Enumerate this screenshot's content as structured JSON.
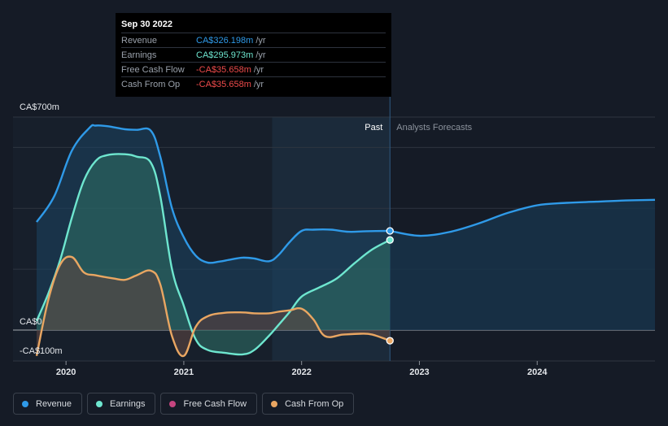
{
  "tooltip": {
    "date": "Sep 30 2022",
    "rows": [
      {
        "label": "Revenue",
        "value": "CA$326.198m",
        "unit": "/yr",
        "color": "#2f9ae8"
      },
      {
        "label": "Earnings",
        "value": "CA$295.973m",
        "unit": "/yr",
        "color": "#6ee6cf"
      },
      {
        "label": "Free Cash Flow",
        "value": "-CA$35.658m",
        "unit": "/yr",
        "color": "#ee4b4b"
      },
      {
        "label": "Cash From Op",
        "value": "-CA$35.658m",
        "unit": "/yr",
        "color": "#ee4b4b"
      }
    ]
  },
  "legend": [
    {
      "label": "Revenue",
      "color": "#2f9ae8"
    },
    {
      "label": "Earnings",
      "color": "#6ee6cf"
    },
    {
      "label": "Free Cash Flow",
      "color": "#c5457f"
    },
    {
      "label": "Cash From Op",
      "color": "#e9a662"
    }
  ],
  "chart_data": {
    "type": "area",
    "x_unit": "year",
    "xlim": [
      2019.55,
      2025.0
    ],
    "ylim": [
      -100,
      700
    ],
    "y_tick_labels": [
      {
        "value": 700,
        "label": "CA$700m"
      },
      {
        "value": 0,
        "label": "CA$0"
      },
      {
        "value": -100,
        "label": "-CA$100m"
      }
    ],
    "gridlines": [
      700,
      600,
      400,
      200,
      0
    ],
    "x_ticks": [
      {
        "value": 2020,
        "label": "2020"
      },
      {
        "value": 2021,
        "label": "2021"
      },
      {
        "value": 2022,
        "label": "2022"
      },
      {
        "value": 2023,
        "label": "2023"
      },
      {
        "value": 2024,
        "label": "2024"
      }
    ],
    "past_label": "Past",
    "forecast_label": "Analysts Forecasts",
    "divider_x": 2022.75,
    "highlight_start_x": 2021.75,
    "series": [
      {
        "name": "Revenue",
        "color": "#2f9ae8",
        "fill": "#1c4463",
        "x": [
          2019.75,
          2019.9,
          2020.05,
          2020.2,
          2020.25,
          2020.35,
          2020.5,
          2020.6,
          2020.72,
          2020.8,
          2020.9,
          2021.0,
          2021.1,
          2021.2,
          2021.3,
          2021.4,
          2021.5,
          2021.6,
          2021.72,
          2021.8,
          2021.9,
          2022.0,
          2022.1,
          2022.25,
          2022.4,
          2022.55,
          2022.75
        ],
        "y": [
          355,
          440,
          590,
          665,
          672,
          670,
          660,
          658,
          655,
          570,
          400,
          305,
          245,
          222,
          225,
          232,
          238,
          235,
          226,
          245,
          290,
          326,
          330,
          330,
          323,
          325,
          326
        ],
        "forecast_x": [
          2022.75,
          2023.0,
          2023.25,
          2023.5,
          2023.75,
          2024.0,
          2024.25,
          2024.5,
          2024.75,
          2025.0
        ],
        "forecast_y": [
          326,
          310,
          322,
          350,
          385,
          410,
          418,
          422,
          426,
          428
        ],
        "marker_x": 2022.75,
        "marker_y": 326
      },
      {
        "name": "Earnings",
        "color": "#6ee6cf",
        "fill": "#2d6a63",
        "x": [
          2019.75,
          2019.85,
          2019.95,
          2020.05,
          2020.15,
          2020.25,
          2020.35,
          2020.5,
          2020.6,
          2020.72,
          2020.8,
          2020.9,
          2021.0,
          2021.1,
          2021.2,
          2021.35,
          2021.5,
          2021.6,
          2021.72,
          2021.8,
          2021.9,
          2022.0,
          2022.15,
          2022.3,
          2022.45,
          2022.6,
          2022.75
        ],
        "y": [
          30,
          120,
          230,
          370,
          490,
          555,
          575,
          578,
          570,
          550,
          440,
          200,
          80,
          -30,
          -65,
          -75,
          -80,
          -65,
          -20,
          15,
          60,
          110,
          140,
          170,
          220,
          265,
          296
        ],
        "marker_x": 2022.75,
        "marker_y": 296
      },
      {
        "name": "Cash From Op",
        "color": "#e9a662",
        "fill": "#5a4642",
        "x": [
          2019.75,
          2019.85,
          2019.95,
          2020.05,
          2020.15,
          2020.25,
          2020.4,
          2020.5,
          2020.6,
          2020.72,
          2020.8,
          2020.9,
          2021.0,
          2021.1,
          2021.2,
          2021.35,
          2021.5,
          2021.6,
          2021.72,
          2021.8,
          2021.9,
          2022.0,
          2022.1,
          2022.2,
          2022.35,
          2022.5,
          2022.6,
          2022.75
        ],
        "y": [
          -85,
          100,
          215,
          240,
          190,
          180,
          170,
          165,
          180,
          195,
          150,
          -20,
          -85,
          10,
          45,
          57,
          58,
          55,
          55,
          60,
          65,
          70,
          35,
          -20,
          -15,
          -12,
          -15,
          -35
        ],
        "marker_x": 2022.75,
        "marker_y": -35
      }
    ]
  }
}
